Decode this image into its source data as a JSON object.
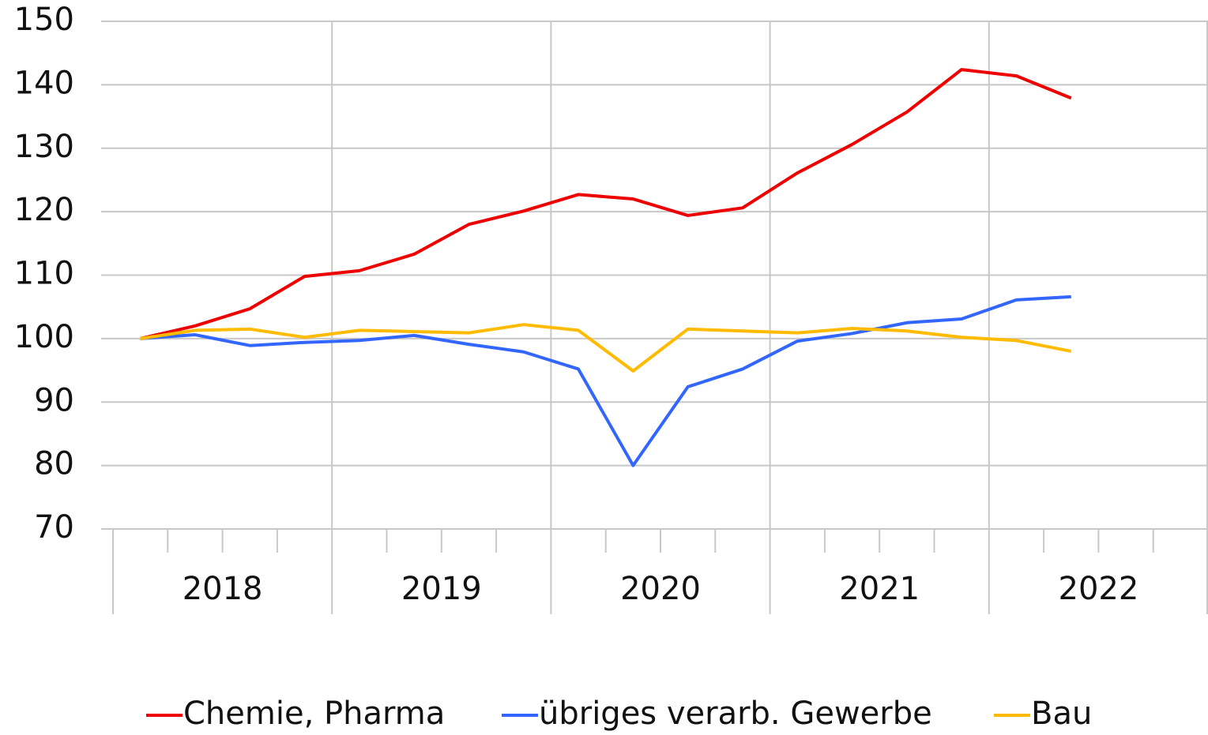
{
  "chart_data": {
    "type": "line",
    "categories": [
      null,
      null,
      null,
      null,
      null,
      null,
      null,
      null,
      null,
      null,
      null,
      null,
      null,
      null,
      null,
      null,
      null,
      null,
      null,
      null
    ],
    "category_groups": [
      "2018",
      "2019",
      "2020",
      "2021",
      "2022"
    ],
    "series": [
      {
        "name": "Chemie, Pharma",
        "color": "#ee0000",
        "values": [
          100,
          102.0,
          104.7,
          109.8,
          110.7,
          113.3,
          118.0,
          120.1,
          122.7,
          122.0,
          119.4,
          120.6,
          126.1,
          130.6,
          135.7,
          142.4,
          141.4,
          137.9,
          null,
          null
        ]
      },
      {
        "name": "übriges verarb. Gewerbe",
        "color": "#3366ff",
        "values": [
          100,
          100.6,
          98.9,
          99.4,
          99.7,
          100.5,
          99.1,
          97.9,
          95.2,
          80,
          92.4,
          95.2,
          99.6,
          100.8,
          102.5,
          103.1,
          106.1,
          106.6,
          null,
          null
        ]
      },
      {
        "name": "Bau",
        "color": "#ffbb00",
        "values": [
          100,
          101.3,
          101.5,
          100.2,
          101.3,
          101.1,
          100.9,
          102.2,
          101.3,
          94.9,
          101.5,
          101.2,
          100.9,
          101.6,
          101.2,
          100.2,
          99.7,
          98.0,
          null,
          null
        ]
      }
    ],
    "ylim": [
      70,
      150
    ],
    "yticks": [
      70,
      80,
      90,
      100,
      110,
      120,
      130,
      140,
      150
    ],
    "grid": true,
    "legend": "bottom"
  }
}
